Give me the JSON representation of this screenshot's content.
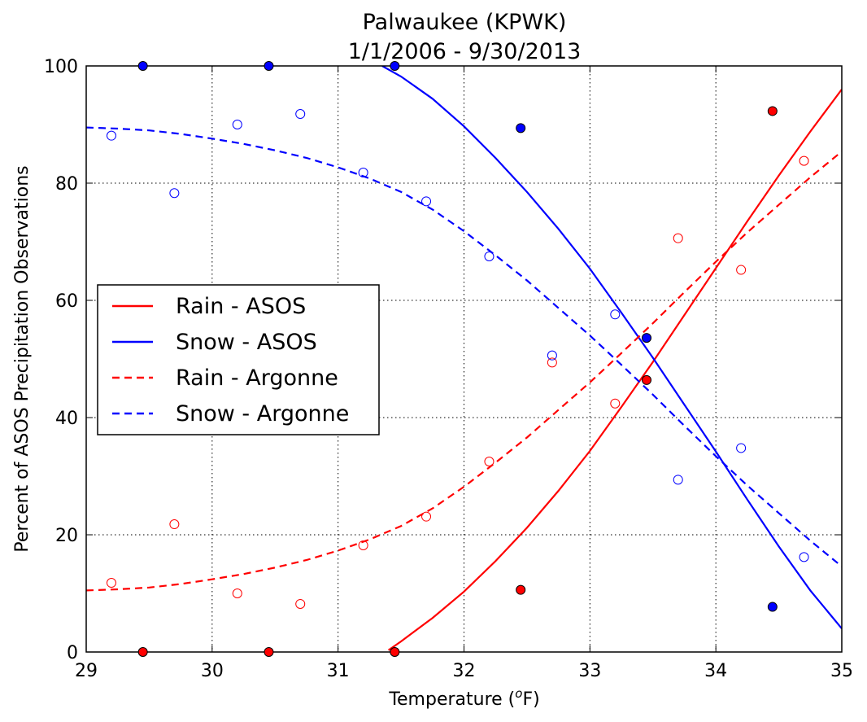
{
  "chart_data": {
    "type": "scatter",
    "title_line1": "Palwaukee (KPWK)",
    "title_line2": "1/1/2006 - 9/30/2013",
    "xlabel": "Temperature (",
    "xlabel_sup": "o",
    "xlabel_suffix": "F)",
    "ylabel": "Percent of ASOS Precipitation Observations",
    "xlim": [
      29,
      35
    ],
    "ylim": [
      0,
      100
    ],
    "xticks": [
      29,
      30,
      31,
      32,
      33,
      34,
      35
    ],
    "yticks": [
      0,
      20,
      40,
      60,
      80,
      100
    ],
    "grid": true,
    "legend_position": "center-left",
    "series": [
      {
        "name": "Rain - ASOS",
        "kind": "line",
        "dash": "solid",
        "color": "#ff0000",
        "x": [
          31.4,
          31.5,
          31.75,
          32.0,
          32.25,
          32.5,
          32.75,
          33.0,
          33.25,
          33.5,
          33.75,
          34.0,
          34.25,
          34.5,
          34.75,
          35.0
        ],
        "y": [
          0.3,
          1.8,
          5.8,
          10.3,
          15.5,
          21.2,
          27.5,
          34.3,
          41.8,
          49.5,
          57.5,
          65.5,
          73.5,
          81.3,
          88.8,
          96.0
        ]
      },
      {
        "name": "Snow - ASOS",
        "kind": "line",
        "dash": "solid",
        "color": "#0000ff",
        "x": [
          31.35,
          31.5,
          31.75,
          32.0,
          32.25,
          32.5,
          32.75,
          33.0,
          33.25,
          33.5,
          33.75,
          34.0,
          34.25,
          34.5,
          34.75,
          35.0
        ],
        "y": [
          100.0,
          98.2,
          94.4,
          89.7,
          84.3,
          78.5,
          72.2,
          65.4,
          57.9,
          50.2,
          42.2,
          34.2,
          26.0,
          18.0,
          10.5,
          4.0
        ]
      },
      {
        "name": "Rain - Argonne",
        "kind": "line",
        "dash": "dashed",
        "color": "#ff0000",
        "x": [
          29.0,
          29.25,
          29.5,
          29.75,
          30.0,
          30.25,
          30.5,
          30.75,
          31.0,
          31.25,
          31.5,
          31.75,
          32.0,
          32.25,
          32.5,
          32.75,
          33.0,
          33.25,
          33.5,
          33.75,
          34.0,
          34.25,
          34.5,
          34.75,
          35.0
        ],
        "y": [
          10.5,
          10.7,
          11.0,
          11.6,
          12.4,
          13.3,
          14.4,
          15.7,
          17.3,
          19.2,
          21.5,
          24.5,
          28.2,
          32.3,
          36.6,
          41.3,
          46.0,
          51.0,
          56.1,
          61.4,
          66.6,
          71.6,
          76.3,
          81.0,
          85.4
        ]
      },
      {
        "name": "Snow - Argonne",
        "kind": "line",
        "dash": "dashed",
        "color": "#0000ff",
        "x": [
          29.0,
          29.25,
          29.5,
          29.75,
          30.0,
          30.25,
          30.5,
          30.75,
          31.0,
          31.25,
          31.5,
          31.75,
          32.0,
          32.25,
          32.5,
          32.75,
          33.0,
          33.25,
          33.5,
          33.75,
          34.0,
          34.25,
          34.5,
          34.75,
          35.0
        ],
        "y": [
          89.5,
          89.3,
          89.0,
          88.4,
          87.6,
          86.7,
          85.6,
          84.3,
          82.7,
          80.8,
          78.5,
          75.5,
          71.8,
          67.7,
          63.4,
          58.7,
          54.0,
          49.0,
          43.9,
          38.6,
          33.4,
          28.4,
          23.7,
          19.0,
          14.6
        ]
      },
      {
        "kind": "points",
        "marker": "filled",
        "color": "#ff0000",
        "x": [
          29.45,
          30.45,
          31.45,
          32.45,
          33.45,
          34.45
        ],
        "y": [
          0,
          0,
          0,
          10.6,
          46.4,
          92.3
        ]
      },
      {
        "kind": "points",
        "marker": "filled",
        "color": "#0000ff",
        "x": [
          29.45,
          30.45,
          31.45,
          32.45,
          33.45,
          34.45
        ],
        "y": [
          100,
          100,
          100,
          89.4,
          53.6,
          7.7
        ]
      },
      {
        "kind": "points",
        "marker": "open",
        "color": "#ff0000",
        "x": [
          29.2,
          29.7,
          30.2,
          30.7,
          31.2,
          31.7,
          32.2,
          32.7,
          33.2,
          33.7,
          34.2,
          34.7
        ],
        "y": [
          11.8,
          21.8,
          10.0,
          8.2,
          18.2,
          23.1,
          32.5,
          49.4,
          42.4,
          70.6,
          65.2,
          83.8
        ]
      },
      {
        "kind": "points",
        "marker": "open",
        "color": "#0000ff",
        "x": [
          29.2,
          29.7,
          30.2,
          30.7,
          31.2,
          31.7,
          32.2,
          32.7,
          33.2,
          33.7,
          34.2,
          34.7
        ],
        "y": [
          88.1,
          78.3,
          90.0,
          91.8,
          81.8,
          76.9,
          67.5,
          50.6,
          57.6,
          29.4,
          34.8,
          16.2
        ]
      }
    ]
  }
}
